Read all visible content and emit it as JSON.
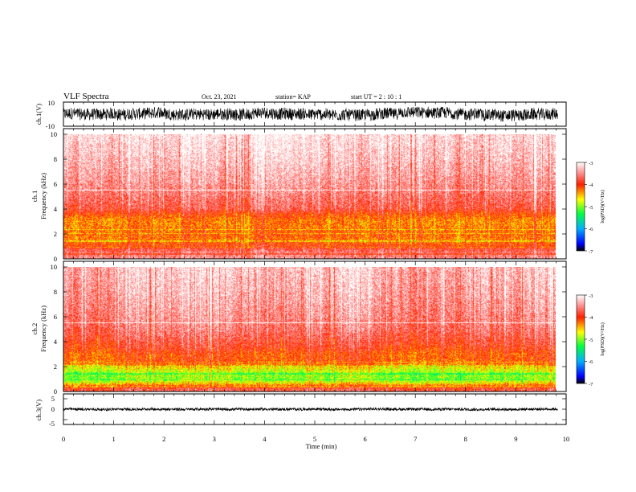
{
  "chart_data": {
    "type": "heatmap",
    "title": "VLF Spectra",
    "header": {
      "date": "Oct. 23, 2021",
      "station": "station= KAP",
      "start": "start UT =  2 : 10 : 1"
    },
    "x_axis": {
      "label": "Time (min)",
      "range": [
        0,
        10
      ],
      "ticks": [
        "0",
        "1",
        "2",
        "3",
        "4",
        "5",
        "6",
        "7",
        "8",
        "9",
        "10"
      ],
      "data_end": 9.83
    },
    "panels": [
      {
        "kind": "waveform",
        "ylabel": "ch.1(V)",
        "yticks": [
          "10",
          "-10"
        ],
        "ylim": [
          -10,
          10
        ],
        "trace": {
          "center": 0,
          "amplitude": 5.0,
          "drift": 1.5
        }
      },
      {
        "kind": "spectrogram",
        "ylabel_top": "ch.1",
        "ylabel": "Frequency (kHz)",
        "yticks": [
          "0",
          "2",
          "4",
          "6",
          "8",
          "10"
        ],
        "ylim": [
          0,
          10
        ],
        "colorbar": {
          "ticks": [
            "-3",
            "-4",
            "-5",
            "-6",
            "-7"
          ],
          "label": "log(PSD)(V²/Hz)",
          "range": [
            -7,
            -3
          ]
        },
        "profile_khz": [
          0,
          0.5,
          1.0,
          1.5,
          2.0,
          2.5,
          3.0,
          3.5,
          4.0,
          5.0,
          6.0,
          7.0,
          8.0,
          10.0
        ],
        "profile_logpsd": [
          -3.5,
          -3.6,
          -4.0,
          -4.25,
          -4.15,
          -4.25,
          -4.3,
          -4.1,
          -3.75,
          -3.6,
          -3.45,
          -3.35,
          -3.25,
          -3.1
        ]
      },
      {
        "kind": "spectrogram",
        "ylabel_top": "ch.2",
        "ylabel": "Frequency (kHz)",
        "yticks": [
          "0",
          "2",
          "4",
          "6",
          "8",
          "10"
        ],
        "ylim": [
          0,
          10
        ],
        "colorbar": {
          "ticks": [
            "-3",
            "-4",
            "-5",
            "-6",
            "-7"
          ],
          "label": "log(PSD)(V²/Hz)",
          "range": [
            -7,
            -3
          ]
        },
        "profile_khz": [
          0,
          0.3,
          0.7,
          1.0,
          1.5,
          1.9,
          2.3,
          3.0,
          3.5,
          4.0,
          5.0,
          6.0,
          8.0,
          10.0
        ],
        "profile_logpsd": [
          -3.7,
          -3.9,
          -4.7,
          -5.0,
          -4.9,
          -4.6,
          -4.1,
          -4.1,
          -3.9,
          -3.8,
          -3.6,
          -3.5,
          -3.35,
          -3.25
        ]
      },
      {
        "kind": "waveform",
        "ylabel": "ch.3(V)",
        "yticks": [
          "5",
          "0",
          "-5"
        ],
        "ylim": [
          -5,
          5
        ],
        "trace": {
          "center": 0.0,
          "amplitude": 0.45,
          "drift": 0.1
        }
      }
    ]
  }
}
